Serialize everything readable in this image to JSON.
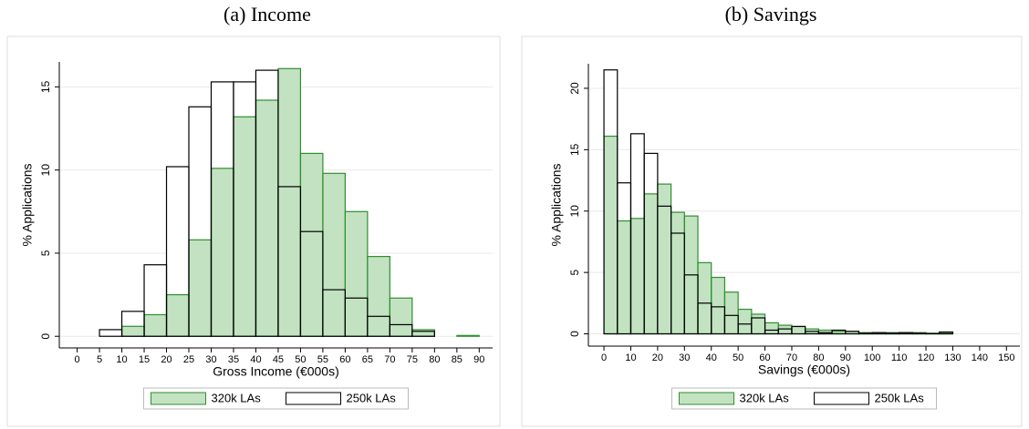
{
  "chart_data": [
    {
      "type": "histogram",
      "title": "(a) Income",
      "xlabel": "Gross Income (€000s)",
      "ylabel": "% Applications",
      "bins": [
        5,
        10,
        15,
        20,
        25,
        30,
        35,
        40,
        45,
        50,
        55,
        60,
        65,
        70,
        75,
        80,
        85,
        90
      ],
      "series": [
        {
          "name": "320k LAs",
          "color": "#c2e2c2",
          "edgecolor": "#2f8f2f",
          "values": [
            0,
            0.6,
            1.3,
            2.5,
            5.8,
            10.1,
            13.2,
            14.2,
            16.1,
            11.0,
            9.8,
            7.5,
            4.8,
            2.3,
            0.4,
            0,
            0.05
          ]
        },
        {
          "name": "250k LAs",
          "color": "#ffffff",
          "edgecolor": "#000000",
          "values": [
            0.4,
            1.5,
            4.3,
            10.2,
            13.8,
            15.3,
            15.3,
            16.0,
            9.0,
            6.3,
            2.8,
            2.3,
            1.2,
            0.7,
            0.3,
            0,
            0
          ]
        }
      ],
      "xlim": [
        -4,
        93
      ],
      "ylim": [
        -0.7,
        16.5
      ],
      "xticks": [
        0,
        5,
        10,
        15,
        20,
        25,
        30,
        35,
        40,
        45,
        50,
        55,
        60,
        65,
        70,
        75,
        80,
        85,
        90
      ],
      "yticks": [
        0,
        5,
        10,
        15
      ],
      "grid": true,
      "legend": "bottom"
    },
    {
      "type": "histogram",
      "title": "(b) Savings",
      "xlabel": "Savings (€000s)",
      "ylabel": "% Applications",
      "bins": [
        0,
        5,
        10,
        15,
        20,
        25,
        30,
        35,
        40,
        45,
        50,
        55,
        60,
        65,
        70,
        75,
        80,
        85,
        90,
        95,
        100,
        105,
        110,
        115,
        120,
        125,
        130
      ],
      "series": [
        {
          "name": "320k LAs",
          "color": "#c2e2c2",
          "edgecolor": "#2f8f2f",
          "values": [
            16.1,
            9.2,
            9.4,
            11.4,
            12.2,
            9.9,
            9.6,
            5.8,
            4.6,
            3.4,
            2.0,
            1.6,
            0.9,
            0.7,
            0.6,
            0.4,
            0.3,
            0.2,
            0.2,
            0.1,
            0.1,
            0.1,
            0.1,
            0.1,
            0.05,
            0.1
          ]
        },
        {
          "name": "250k LAs",
          "color": "#ffffff",
          "edgecolor": "#000000",
          "values": [
            21.5,
            12.3,
            16.3,
            14.7,
            10.4,
            8.2,
            4.8,
            2.5,
            2.2,
            1.5,
            0.8,
            1.3,
            0.3,
            0.4,
            0.6,
            0.2,
            0.1,
            0.3,
            0.2,
            0.05,
            0.1,
            0.05,
            0.1,
            0.05,
            0.02,
            0.15
          ]
        }
      ],
      "xlim": [
        -5.8,
        155
      ],
      "ylim": [
        -1,
        22
      ],
      "xticks": [
        0,
        10,
        20,
        30,
        40,
        50,
        60,
        70,
        80,
        90,
        100,
        110,
        120,
        130,
        140,
        150
      ],
      "yticks": [
        0,
        5,
        10,
        15,
        20
      ],
      "grid": true,
      "legend": "bottom"
    }
  ]
}
